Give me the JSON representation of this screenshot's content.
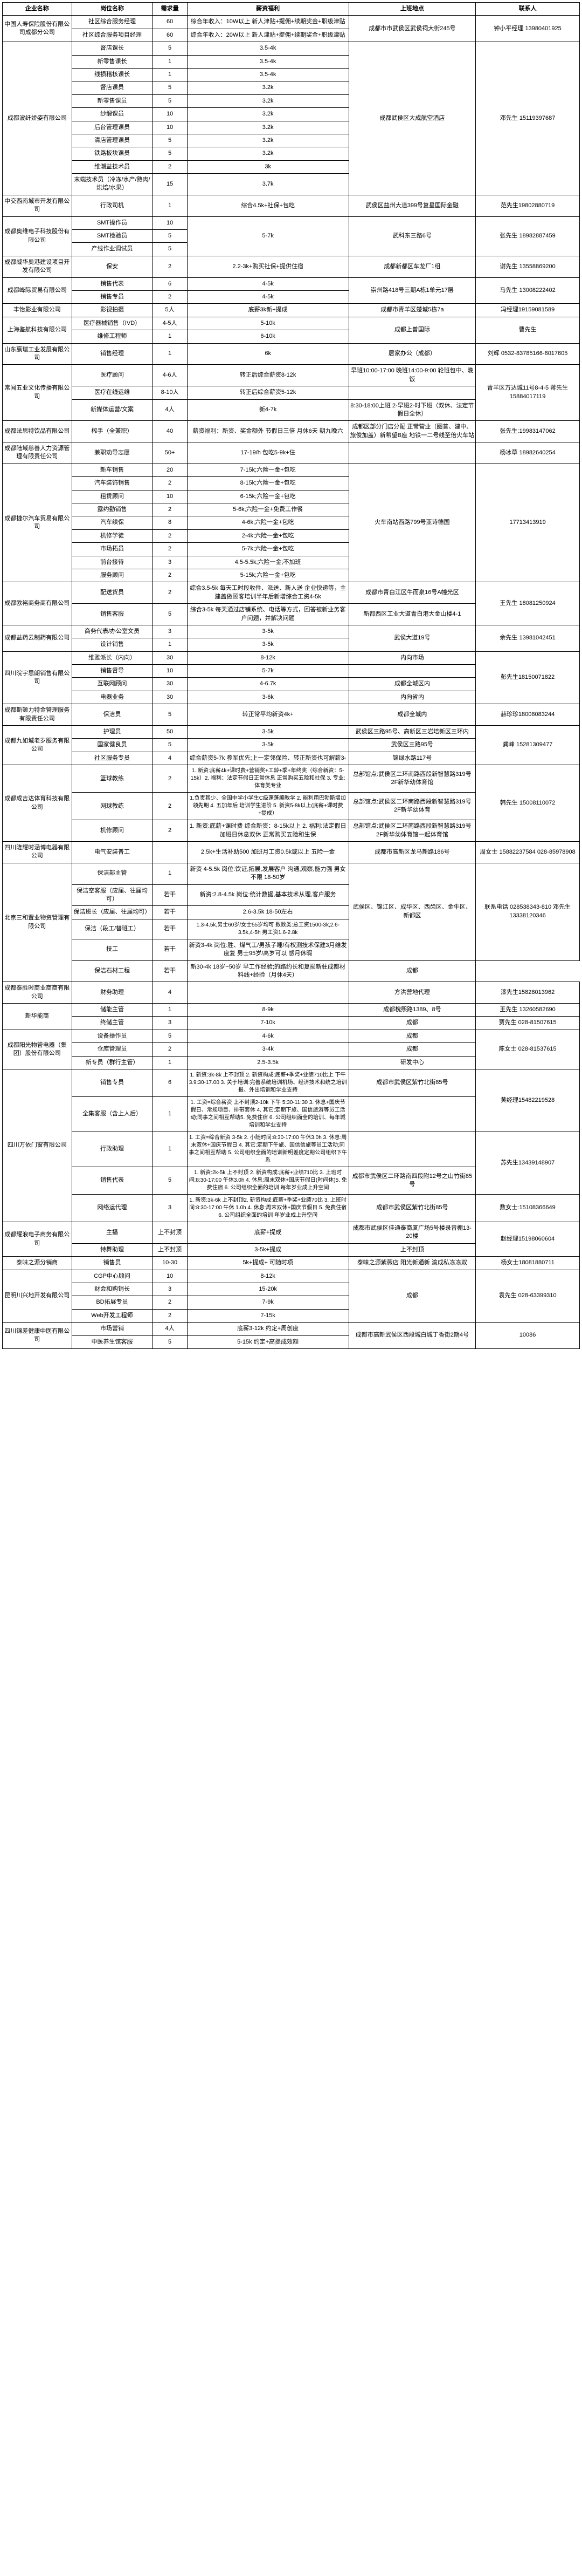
{
  "headers": [
    "企业名称",
    "岗位名称",
    "需求量",
    "薪资福利",
    "上班地点",
    "联系人"
  ],
  "companies": [
    {
      "name": "中国人寿保险股份有限公司成都分公司",
      "contact": "钟小平经理 13980401925",
      "location": "成都市市武侯区武侯祠大街245号",
      "rows": [
        {
          "pos": "社区综合服务经理",
          "demand": "60",
          "salary": "综合年收入：10W以上 新人津贴+提佣+续期奖金+职级津贴",
          "rowspan_loc": 2,
          "rowspan_contact": 2
        },
        {
          "pos": "社区综合服务项目经理",
          "demand": "60",
          "salary": "综合年收入：20W以上 新人津贴+提佣+续期奖金+职级津贴"
        }
      ]
    },
    {
      "name": "成都波纤娇姿有限公司",
      "contact": "邓先生 15119397687",
      "location": "成都武侯区大成航空酒店",
      "rows": [
        {
          "pos": "督店课长",
          "demand": "5",
          "salary": "3.5-4k",
          "rowspan_loc": 11,
          "rowspan_contact": 11
        },
        {
          "pos": "新零售课长",
          "demand": "1",
          "salary": "3.5-4k"
        },
        {
          "pos": "线损稽核课长",
          "demand": "1",
          "salary": "3.5-4k"
        },
        {
          "pos": "督店课员",
          "demand": "5",
          "salary": "3.2k"
        },
        {
          "pos": "新零售课员",
          "demand": "5",
          "salary": "3.2k"
        },
        {
          "pos": "纱缎课员",
          "demand": "10",
          "salary": "3.2k"
        },
        {
          "pos": "后台管理课员",
          "demand": "10",
          "salary": "3.2k"
        },
        {
          "pos": "清店管理课员",
          "demand": "5",
          "salary": "3.2k"
        },
        {
          "pos": "铁路板块课员",
          "demand": "5",
          "salary": "3.2k"
        },
        {
          "pos": "维潮益技术员",
          "demand": "2",
          "salary": "3k"
        },
        {
          "pos": "末端技术员（冷冻/水产/熟肉/烘焙/水果）",
          "demand": "15",
          "salary": "3.7k"
        }
      ]
    },
    {
      "name": "中交西南城市开发有限公司",
      "rows": [
        {
          "pos": "行政司机",
          "demand": "1",
          "salary": "综合4.5k+社保+包吃",
          "loc": "武侯区益州大道399号复星国际金融",
          "contact": "范先生19802880719"
        }
      ]
    },
    {
      "name": "成都奥维电子科技股份有限公司",
      "contact": "张先生 18982887459",
      "location": "武科东三路6号",
      "rows": [
        {
          "pos": "SMT操作员",
          "demand": "10",
          "salary": "",
          "rowspan_salary": 3,
          "rowspan_loc": 3,
          "rowspan_contact": 3,
          "salary_val": "5-7k"
        },
        {
          "pos": "SMT检验员",
          "demand": "5"
        },
        {
          "pos": "产线作业调试员",
          "demand": "5"
        }
      ]
    },
    {
      "name": "成都威华奥港建设项目开发有限公司",
      "rows": [
        {
          "pos": "保安",
          "demand": "2",
          "salary": "2.2-3k+购买社保+提供住宿",
          "loc": "成都新都区车龙厂1组",
          "contact": "谢先生 13558869200"
        }
      ]
    },
    {
      "name": "成都峰际贸易有限公司",
      "contact": "马先生 13008222402",
      "location": "崇州路418号三期A栋1单元17层",
      "rows": [
        {
          "pos": "销售代表",
          "demand": "6",
          "salary": "4-5k",
          "rowspan_loc": 2,
          "rowspan_contact": 2
        },
        {
          "pos": "销售专员",
          "demand": "2",
          "salary": "4-5k"
        }
      ]
    },
    {
      "name": "丰怡影业有限公司",
      "rows": [
        {
          "pos": "影视拍摄",
          "demand": "5人",
          "salary": "底薪3k新+提成",
          "loc": "成都市青羊区楚城5栋7a",
          "contact": "冯经理19159081589"
        }
      ]
    },
    {
      "name": "上海鉴航科技有限公司",
      "contact": "曹先生",
      "location": "成都上普国际",
      "rows": [
        {
          "pos": "医疗器械销售（IVD）",
          "demand": "4-5人",
          "salary": "5-10k",
          "rowspan_loc": 2,
          "rowspan_contact": 2
        },
        {
          "pos": "维修工程师",
          "demand": "1",
          "salary": "6-10k"
        }
      ]
    },
    {
      "name": "山东赢瑞工业发展有限公司",
      "rows": [
        {
          "pos": "销售经理",
          "demand": "1",
          "salary": "6k",
          "loc": "居家办公（成都）",
          "contact": "刘辉 0532-83785166-6017605"
        }
      ]
    },
    {
      "name": "常闻五业文化传播有限公司",
      "contact": "青羊区万达城11号8-4-5 蒋先生15884017119",
      "rows": [
        {
          "pos": "医疗顾问",
          "demand": "4-6人",
          "salary": "转正后综合薪资8-12k",
          "loc": "早班10:00-17:00 晚班14:00-9:00 轮班包中、晚饭",
          "rowspan_contact": 3
        },
        {
          "pos": "医疗在线运维",
          "demand": "8-10人",
          "salary": "转正后综合薪资5-12k",
          "loc_same": true
        },
        {
          "pos": "新媒体运营/文案",
          "demand": "4人",
          "salary": "新4-7k",
          "loc": "8:30-18:00上班 2-早班2-时下班（双休、法定节假日全休）"
        }
      ]
    },
    {
      "name": "成都法思特饮品有限公司",
      "rows": [
        {
          "pos": "榨手（全兼职）",
          "demand": "40",
          "salary": "薪资福利：新资、奖金额外 节假日三倍 月休6天 朝九晚六",
          "loc": "成都区部分门店分配 正常营业（图普、建中、旅俊加盖）新希望B座 地铁一二号线至倍火车站",
          "contact": "张先生:19983147062"
        }
      ]
    },
    {
      "name": "成都陆域慈善人力资源管理有限责任公司",
      "rows": [
        {
          "pos": "兼职劝导志愿",
          "demand": "50+",
          "salary": "17-19/h 包吃5-9k+住",
          "loc": "",
          "contact": "杨冰草 18982640254"
        }
      ]
    },
    {
      "name": "成都捷尔汽车贸易有限公司",
      "contact": "17713413919",
      "location": "火车南站西路799号亚诗德国",
      "rows": [
        {
          "pos": "新车销售",
          "demand": "20",
          "salary": "7-15k;六险一金+包吃",
          "rowspan_loc": 9,
          "rowspan_contact": 9
        },
        {
          "pos": "汽车装饰销售",
          "demand": "2",
          "salary": "8-15k;六险一金+包吃"
        },
        {
          "pos": "租赁顾问",
          "demand": "10",
          "salary": "6-15k;六险一金+包吃"
        },
        {
          "pos": "露约勤销售",
          "demand": "2",
          "salary": "5-6k;六险一金+免费工作餐"
        },
        {
          "pos": "汽车续保",
          "demand": "8",
          "salary": "4-6k;六险一金+包吃"
        },
        {
          "pos": "机修学徒",
          "demand": "2",
          "salary": "2-4k;六险一金+包吃"
        },
        {
          "pos": "市场拓员",
          "demand": "2",
          "salary": "5-7k;六险一金+包吃"
        },
        {
          "pos": "前台接待",
          "demand": "3",
          "salary": "4.5-5.5k;六险一金;不加班"
        },
        {
          "pos": "服务顾问",
          "demand": "2",
          "salary": "5-15k;六险一金+包吃"
        }
      ]
    },
    {
      "name": "成都欧裕商务商有限公司",
      "contact": "王先生 18081250924",
      "rows": [
        {
          "pos": "配送货员",
          "demand": "2",
          "salary": "综合3.5-5k 每天工时段收件、派送、新人送 企业快递等，主建盖做顾客培训半年后新增综合工资4-5k",
          "loc": "成都市青白江区牛而泉16号A幢光区",
          "rowspan_contact": 2
        },
        {
          "pos": "销售客服",
          "demand": "5",
          "salary": "综合3-5k 每天通过店铺系统、电话等方式，回答被新业务客户问题，并解决问题",
          "loc": "新都西区工业大道青白港大金山楼4-1"
        }
      ]
    },
    {
      "name": "成都益药云制药有限公司",
      "contact": "余先生 13981042451",
      "location": "武侯大道19号",
      "rows": [
        {
          "pos": "商务代表/办公室文员",
          "demand": "3",
          "salary": "3-5k",
          "rowspan_loc": 2,
          "rowspan_contact": 2
        },
        {
          "pos": "设计销售",
          "demand": "1",
          "salary": "3-5k"
        }
      ]
    },
    {
      "name": "四川晥宇思朗销售有限公司",
      "contact": "彭先生18150071822",
      "location": "内向市场\\n成都全城区\\n四川省内",
      "loc_multiline": true,
      "rows": [
        {
          "pos": "维雅派长（内向）",
          "demand": "30",
          "salary": "8-12k",
          "loc": "内向市场",
          "rowspan_contact": 4
        },
        {
          "pos": "销售督导",
          "demand": "10",
          "salary": "5-7k",
          "loc": ""
        },
        {
          "pos": "互联网顾问",
          "demand": "30",
          "salary": "4-6.7k",
          "loc": "成都全城区内"
        },
        {
          "pos": "电器业务",
          "demand": "30",
          "salary": "3-6k",
          "loc": "内向省内"
        }
      ]
    },
    {
      "name": "成都斯顿力特金管理服务有限责任公司",
      "rows": [
        {
          "pos": "保洁员",
          "demand": "5",
          "salary": "转正常平均新资4k+",
          "loc": "成都全城内",
          "contact": "赫珍珍18008083244"
        }
      ]
    },
    {
      "name": "成都九如城老岁服务有限公司",
      "contact": "龚峰 15281309477",
      "rows": [
        {
          "pos": "护理员",
          "demand": "50",
          "salary": "3-5k",
          "loc": "武侯区三路95号、高新区三岩培新区三环内",
          "rowspan_contact": 3
        },
        {
          "pos": "国家健良员",
          "demand": "5",
          "salary": "3-5k",
          "loc": "武侯区三路95号"
        },
        {
          "pos": "社区服务专员",
          "demand": "4",
          "salary": "综合薪资5-7k 参军优先;上一定邻保险、转正新资也可解薪3-",
          "loc": "锦绿水路117号"
        }
      ]
    },
    {
      "name": "成都成吉达体育科技有限公司",
      "contact": "韩先生 15008110072",
      "rows": [
        {
          "pos": "篮球教练",
          "demand": "2",
          "salary": "1. 新资:底薪4k+课时费+营销奖+工龄+季+年终奖（综合新资：5-15k）2. 福利：法定节假日正常休息 正常购买五险和社保 3. 专业:体育类专业",
          "loc": "总部馆点:武侯区二环南路西段新智慧路319号2F新华幼体育馆",
          "rowspan_contact": 3
        },
        {
          "pos": "网球教练",
          "demand": "2",
          "salary": "1.负责其少、全国中学小学生C级蓬蓬编教学 2. 能利用巴勃斯增加领先期 4. 五加年后 培训学生进阶 5. 新资5-8k以上(底薪+课时费+提成）",
          "loc": "总部馆点:武侯区二环南路西段新智慧路319号2F新华幼体育"
        },
        {
          "pos": "机修顾问",
          "demand": "2",
          "salary": "1. 新资:底薪+课时费 综合新资：8-15k以上 2. 福利:法定假日加班日休息双休 正常购买五险和生保",
          "loc": "总部馆点:武侯区二环南路西段新智慧路319号2F新华幼体育馆一起体育馆"
        }
      ]
    },
    {
      "name": "四川隆耀时涵博电器有限公司",
      "rows": [
        {
          "pos": "电气安装普工",
          "demand": "",
          "salary": "2.5k+生活补助500 加班月工资0.5k或以上 五险一金",
          "loc": "成都市高新区龙马新路186号",
          "contact": "周女士 15882237584 028-85978908"
        }
      ]
    },
    {
      "name": "北京三和置业物资管理有限公司",
      "contact": "联系电话 028538343-810 邓先生 13338120346",
      "location": "武侯区、锦江区、成华区、西齿区、金牛区、新都区",
      "rows": [
        {
          "pos": "保洁部主管",
          "demand": "1",
          "salary": "新资 4-5.5k 岗位:饮证,拓展,发展客户 沟通,观察,能力强 男女不限 18-50岁",
          "rowspan_loc": 5,
          "rowspan_contact": 5
        },
        {
          "pos": "保洁空客服（应届、往届均可）",
          "demand": "若干",
          "salary": "新资:2.8-4.5k 岗位:统计数据,基本技术从理,客户服务"
        },
        {
          "pos": "保洁班长（应届、往届均可）",
          "demand": "若干",
          "salary": "2.6-3.5k 18-50左右"
        },
        {
          "pos": "保洁（段工/替班工）",
          "demand": "若干",
          "salary": "1.3-4.5k,男士60岁/女士55岁均可 数数类:总工资1500-3k,2.6-3.5k,4-5h 男工资1.6-2.8k"
        },
        {
          "pos": "技工",
          "demand": "若干",
          "salary": "新资3-4k 岗位:胜、煤气工/男孩子睡/有权测技术保建3月维发度复 男士95岁/高岁可以 感月休暇"
        },
        {
          "pos": "保洁石材工程",
          "demand": "若干",
          "salary": "新30-4k 18岁~50岁 早工作经验;的路约长和复损新驻成都材料线+经验（月休4天）",
          "loc": "成都"
        }
      ]
    },
    {
      "name": "成都泰胜时商业商商有限公司",
      "rows": [
        {
          "pos": "财务助理",
          "demand": "4",
          "salary": "",
          "loc": "方洪营地代理",
          "contact": "漆先生15828013962"
        }
      ]
    },
    {
      "name": "新华能商",
      "rows": [
        {
          "pos": "储能主管",
          "demand": "1",
          "salary": "8-9k",
          "loc": "成都槐熙路1389、8号",
          "contact": "王先生 13260582690"
        },
        {
          "pos": "终储主管",
          "demand": "3",
          "salary": "7-10k",
          "loc": "成都",
          "contact": "贾先生 028-81507615"
        }
      ]
    },
    {
      "name": "成都阳光物管电器（集团）股份有限公司",
      "contact": "陈女士 028-81537615",
      "location": "成都\\n研发中心",
      "rows": [
        {
          "pos": "设备操作员",
          "demand": "5",
          "salary": "4-6k",
          "loc": "成都",
          "rowspan_contact": 3
        },
        {
          "pos": "仓库管理员",
          "demand": "2",
          "salary": "3-4k",
          "loc": "成都"
        },
        {
          "pos": "新专员（群行主管）",
          "demand": "1",
          "salary": "2.5-3.5k",
          "loc": "研发中心"
        }
      ]
    },
    {
      "name": "四川万依门窗有限公司",
      "contact": "黄经理15482219528",
      "location": "成都市武侯区紫竹北街85号",
      "rows": [
        {
          "pos": "销售专员",
          "demand": "6",
          "salary": "1. 新资:3k-8k 上不封顶 2. 新资构成:底薪+季奖+业绩710比上 下午3.9:30-17.00 3. 关于培训:完善系统培训机场、经济技术和统之培训报、外出培训和学业支持",
          "loc": "成都市武侯区紫竹北街85号",
          "rowspan_contact": 2
        },
        {
          "pos": "全集客服（含上人后）",
          "demand": "1",
          "salary": "1. 工资=综合薪资 上不封顶2-10k 下午 5:30-11:30 3. 休息+国庆节假日、常规项目、排带套休 4. 其它:定期下旅、国信旅游等员工活动;同事之间相互帮助5. 免费住宿 6. 公司组织面全的培训、每年城培训和学业支持",
          "loc": ""
        },
        {
          "pos": "行政助理",
          "demand": "1",
          "salary": "1. 工资=综合新资 3-5k 2. 小随时间:8:30-17:00 午休3.0h 3. 休息:周末双休+国庆节假日 4. 其它:定期下午旅、国信信旅等员工活动;同事之间相互帮助 5. 公司组织全面的培训新明差度定期公司组织下午系",
          "loc": "",
          "rowspan_contact": 2,
          "contact_override": "苏先生13439148907"
        },
        {
          "pos": "销售代表",
          "demand": "5",
          "salary": "1. 新资:2k-5k 上不封顶 2. 新资构成:底薪+业绩710比 3. 上班时间:8:30-17:00 午休3.0h 4. 休息:周末双休+国庆节假日(时间休)5. 免费住宿 6. 公司组织全面的培训 每年岁业成上升空间",
          "loc": "成都市武侯区二环路南四段附12号之山竹街85号"
        },
        {
          "pos": "网络运代理",
          "demand": "3",
          "salary": "1. 新资:3k-6k 上不封顶2. 新资构成:底薪+季奖+业绩70比 3. 上班时间:8:30-17:00 午休 1.0h 4. 休息:周末双休+国庆节假日 5. 免费住宿 6. 公司组织全面的培训 年岁业成上升空间",
          "loc": "成都市武侯区紫竹北街85号",
          "contact_override": "数女士:15108366649"
        }
      ]
    },
    {
      "name": "成都耀浪电子商务有限公司",
      "contact": "赵经理15198060604",
      "rows": [
        {
          "pos": "主播",
          "demand": "上不封顶",
          "salary": "底薪+提成",
          "loc": "上不封顶",
          "loc_override": "成都市武侯区佳通泰商厦广场5号楼录音棚13-20楼",
          "rowspan_contact": 2
        },
        {
          "pos": "特舞助理",
          "demand": "上不封顶",
          "salary": "3-5k+提成",
          "loc": "上不封顶"
        }
      ]
    },
    {
      "name": "泰味之源分销商",
      "rows": [
        {
          "pos": "销售员",
          "demand": "10-30",
          "salary": "5k+提成+ 可随时项",
          "loc": "泰味之源紫薇店 阳光新通新 渝成私冻冻双",
          "contact": "杨女士18081880711"
        }
      ]
    },
    {
      "name": "昆明川兴地开发有限公司",
      "contact": "袁先生 028-63399310",
      "location": "成都",
      "rows": [
        {
          "pos": "CGP中心顾问",
          "demand": "10",
          "salary": "8-12k",
          "rowspan_loc": 4,
          "rowspan_contact": 4
        },
        {
          "pos": "财会和购销长",
          "demand": "3",
          "salary": "15-20k"
        },
        {
          "pos": "BD拓展专员",
          "demand": "2",
          "salary": "7-9k"
        },
        {
          "pos": "Web开发工程师",
          "demand": "2",
          "salary": "7-15k"
        }
      ]
    },
    {
      "name": "四川锦差健康中医有限公司",
      "contact": "10086",
      "location": "成都市高新武侯区西段城白城丁香街2期4号",
      "loc_small": true,
      "rows": [
        {
          "pos": "市场营销",
          "demand": "4人",
          "salary": "底薪3-12k 约定+周创度",
          "rowspan_loc": 2,
          "rowspan_contact": 2
        },
        {
          "pos": "中医养生馆客服",
          "demand": "5",
          "salary": "5-15k 约定+高提成效额"
        }
      ]
    }
  ]
}
